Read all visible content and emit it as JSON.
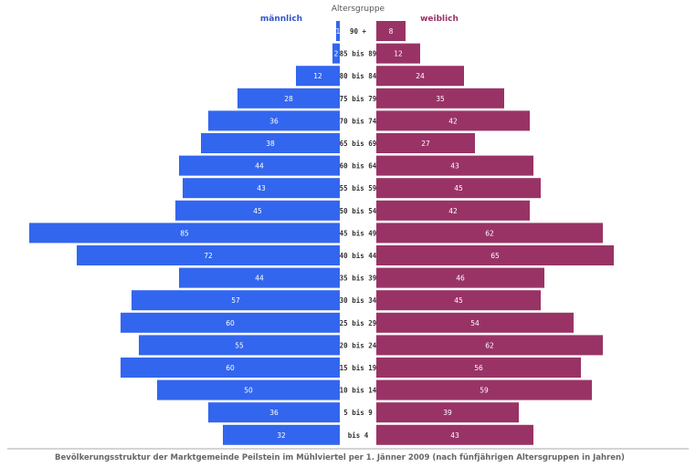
{
  "chart_data": {
    "type": "bar",
    "orientation": "horizontal-diverging",
    "axis_header": "Altersgruppe",
    "categories": [
      "90 +",
      "85 bis 89",
      "80 bis 84",
      "75 bis 79",
      "70 bis 74",
      "65 bis 69",
      "60 bis 64",
      "55 bis 59",
      "50 bis 54",
      "45 bis 49",
      "40 bis 44",
      "35 bis 39",
      "30 bis 34",
      "25 bis 29",
      "20 bis 24",
      "15 bis 19",
      "10 bis 14",
      "5 bis 9",
      "bis 4"
    ],
    "series": [
      {
        "name": "männlich",
        "color": "#3366ee",
        "values": [
          1,
          2,
          12,
          28,
          36,
          38,
          44,
          43,
          45,
          85,
          72,
          44,
          57,
          60,
          55,
          60,
          50,
          36,
          32
        ]
      },
      {
        "name": "weiblich",
        "color": "#993366",
        "values": [
          8,
          12,
          24,
          35,
          42,
          27,
          43,
          45,
          42,
          62,
          65,
          46,
          45,
          54,
          62,
          56,
          59,
          39,
          43
        ]
      }
    ],
    "caption": "Bevölkerungsstruktur der Marktgemeinde Peilstein im Mühlviertel per 1. Jänner 2009 (nach fünfjährigen Altersgruppen in Jahren)",
    "legend": "top",
    "grid": false
  }
}
